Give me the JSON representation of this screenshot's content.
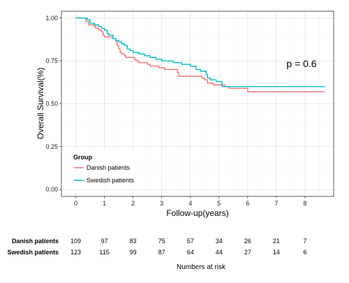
{
  "chart_data": {
    "type": "line",
    "subtype": "kaplan-meier step",
    "xlabel": "Follow-up(years)",
    "ylabel": "Overall Survival(%)",
    "xlim": [
      -0.5,
      9.0
    ],
    "ylim": [
      -0.04,
      1.04
    ],
    "xticks": [
      "0",
      "1",
      "2",
      "3",
      "4",
      "5",
      "6",
      "7",
      "8"
    ],
    "yticks": [
      "0.00",
      "0.25",
      "0.50",
      "0.75",
      "1.00"
    ],
    "grid": true,
    "annotation": "p = 0.6",
    "legend": {
      "title": "Group",
      "position": "bottom-left",
      "entries": [
        "Danish patients",
        "Swedish patients"
      ]
    },
    "series": [
      {
        "name": "Danish patients",
        "color": "#F8766D",
        "x": [
          0,
          0.35,
          0.45,
          0.55,
          0.65,
          0.7,
          0.8,
          0.9,
          0.95,
          1.0,
          1.3,
          1.4,
          1.45,
          1.5,
          1.55,
          1.6,
          1.7,
          1.75,
          1.85,
          2.05,
          2.1,
          2.2,
          2.35,
          2.5,
          2.6,
          2.75,
          2.9,
          3.1,
          3.2,
          3.55,
          3.6,
          4.4,
          4.5,
          4.6,
          4.8,
          5.2,
          5.35,
          6.0,
          8.7
        ],
        "y": [
          1.0,
          0.98,
          0.96,
          0.96,
          0.95,
          0.94,
          0.93,
          0.92,
          0.9,
          0.89,
          0.88,
          0.86,
          0.84,
          0.82,
          0.8,
          0.79,
          0.78,
          0.77,
          0.77,
          0.76,
          0.75,
          0.74,
          0.74,
          0.73,
          0.72,
          0.72,
          0.71,
          0.7,
          0.7,
          0.68,
          0.66,
          0.65,
          0.64,
          0.62,
          0.61,
          0.6,
          0.59,
          0.57,
          0.57
        ]
      },
      {
        "name": "Swedish patients",
        "color": "#00BFC4",
        "x": [
          0,
          0.4,
          0.5,
          0.65,
          0.8,
          0.9,
          1.0,
          1.1,
          1.15,
          1.3,
          1.4,
          1.5,
          1.6,
          1.7,
          1.8,
          1.9,
          2.0,
          2.2,
          2.4,
          2.6,
          2.8,
          3.0,
          3.4,
          3.7,
          4.0,
          4.2,
          4.35,
          4.55,
          4.6,
          4.7,
          4.9,
          5.1,
          8.7
        ],
        "y": [
          1.0,
          0.99,
          0.97,
          0.96,
          0.95,
          0.94,
          0.93,
          0.91,
          0.9,
          0.88,
          0.87,
          0.86,
          0.85,
          0.84,
          0.82,
          0.81,
          0.8,
          0.79,
          0.78,
          0.77,
          0.76,
          0.75,
          0.74,
          0.73,
          0.72,
          0.7,
          0.69,
          0.67,
          0.65,
          0.64,
          0.63,
          0.6,
          0.6
        ]
      }
    ],
    "risk_table": {
      "title": "Numbers at risk",
      "times": [
        0,
        1,
        2,
        3,
        4,
        5,
        6,
        7,
        8
      ],
      "rows": [
        {
          "label": "Danish patients",
          "values": [
            "109",
            "97",
            "83",
            "75",
            "57",
            "34",
            "26",
            "21",
            "7"
          ]
        },
        {
          "label": "Swedish patients",
          "values": [
            "123",
            "115",
            "99",
            "87",
            "64",
            "44",
            "27",
            "14",
            "6"
          ]
        }
      ]
    }
  }
}
